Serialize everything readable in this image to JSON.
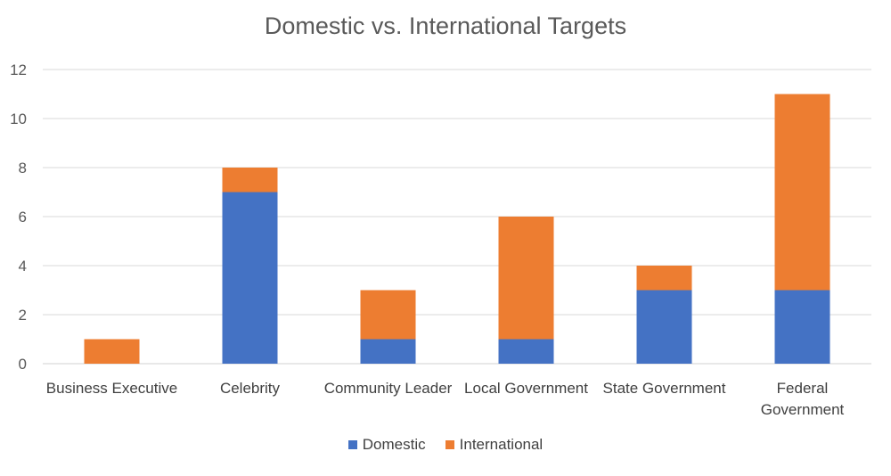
{
  "chart_data": {
    "type": "bar",
    "stacked": true,
    "title": "Domestic vs. International Targets",
    "categories": [
      "Business Executive",
      "Celebrity",
      "Community Leader",
      "Local Government",
      "State Government",
      "Federal Government"
    ],
    "category_lines": [
      [
        "Business Executive"
      ],
      [
        "Celebrity"
      ],
      [
        "Community Leader"
      ],
      [
        "Local Government"
      ],
      [
        "State Government"
      ],
      [
        "Federal",
        "Government"
      ]
    ],
    "series": [
      {
        "name": "Domestic",
        "color": "#4472C4",
        "values": [
          0,
          7,
          1,
          1,
          3,
          3
        ]
      },
      {
        "name": "International",
        "color": "#ED7D31",
        "values": [
          1,
          1,
          2,
          5,
          1,
          8
        ]
      }
    ],
    "y_ticks": [
      0,
      2,
      4,
      6,
      8,
      10,
      12
    ],
    "ylim": [
      0,
      12
    ],
    "grid": true,
    "legend_position": "bottom"
  }
}
